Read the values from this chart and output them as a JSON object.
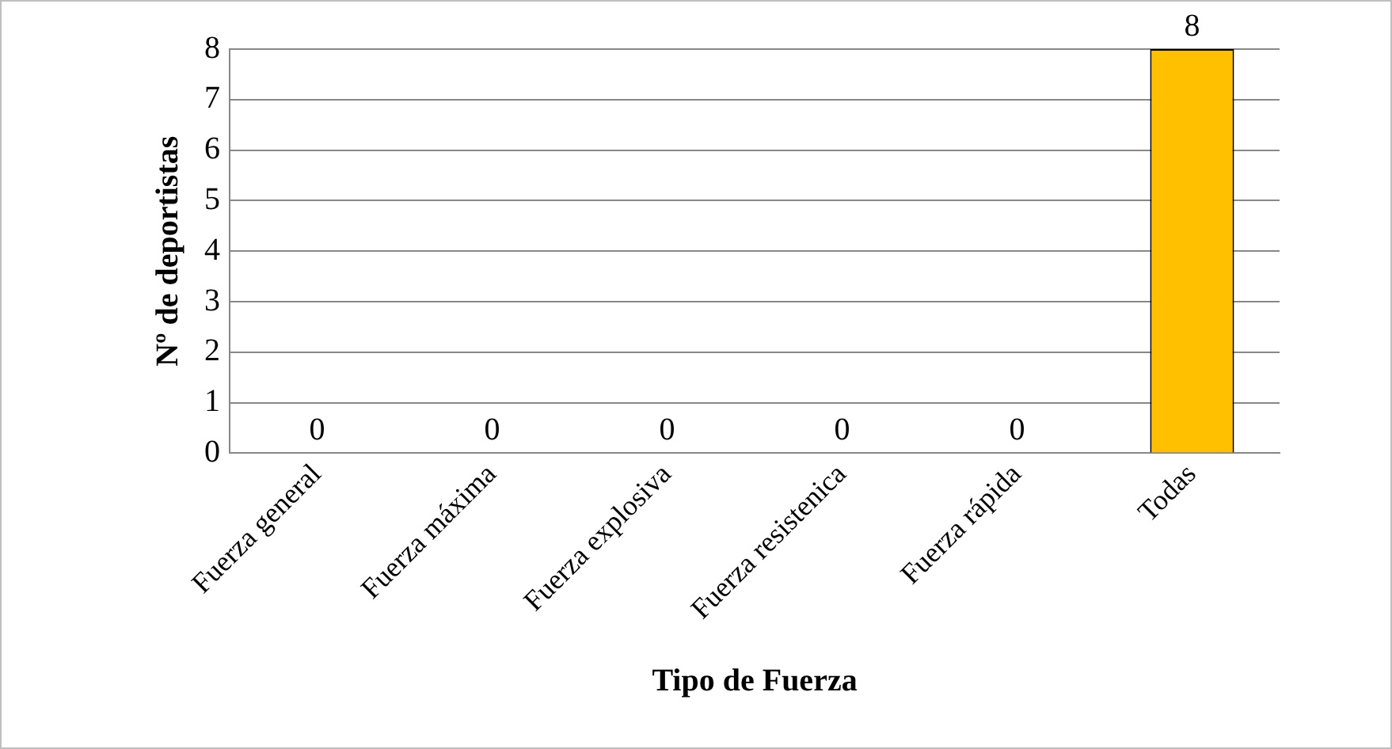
{
  "chart_data": {
    "type": "bar",
    "xlabel": "Tipo de Fuerza",
    "ylabel": "Nº de deportistas",
    "categories": [
      "Fuerza general",
      "Fuerza máxima",
      "Fuerza explosiva",
      "Fuerza resistenica",
      "Fuerza rápida",
      "Todas"
    ],
    "values": [
      0,
      0,
      0,
      0,
      0,
      8
    ],
    "colors": [
      "#376092",
      "#376092",
      "#376092",
      "#376092",
      "#376092",
      "#ffc000"
    ],
    "ylim": [
      0,
      8
    ],
    "yticks": [
      0,
      1,
      2,
      3,
      4,
      5,
      6,
      7,
      8
    ],
    "grid": "y",
    "legend": false,
    "data_labels": true
  }
}
